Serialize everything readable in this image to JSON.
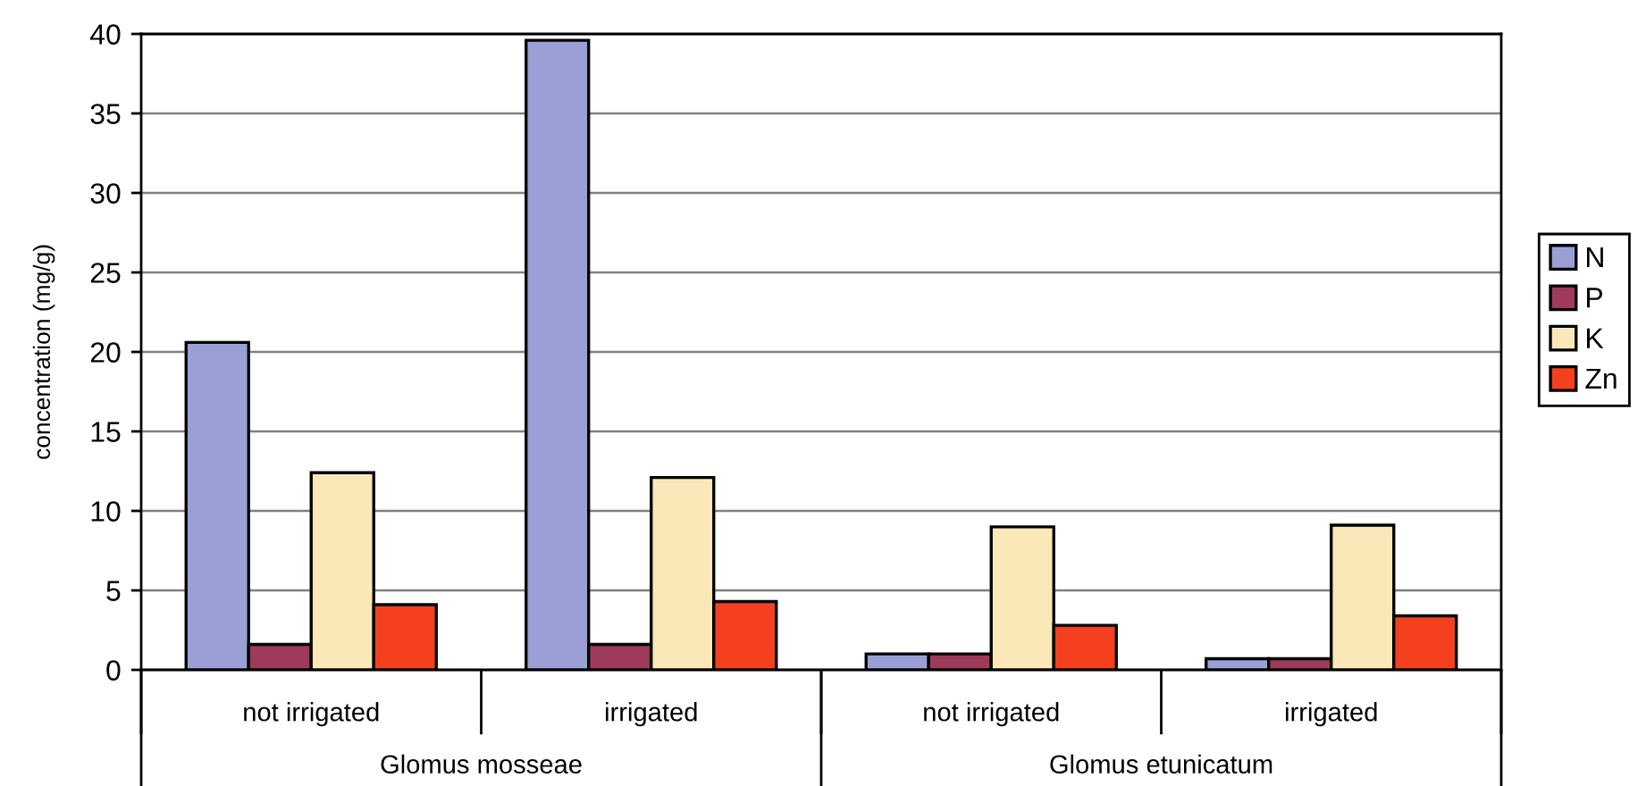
{
  "chart_data": {
    "type": "bar",
    "categories": [
      "not irrigated",
      "irrigated",
      "not irrigated",
      "irrigated"
    ],
    "annotations": [
      "Glomus mosseae",
      "Glomus etunicatum"
    ],
    "ylabel": "concentration (mg/g)",
    "series": [
      {
        "name": "N",
        "color": "#9aa0d6",
        "values": [
          20.6,
          39.6,
          1.0,
          0.7
        ]
      },
      {
        "name": "P",
        "color": "#9e3a5a",
        "values": [
          1.6,
          1.6,
          1.0,
          0.7
        ]
      },
      {
        "name": "K",
        "color": "#fbe8b8",
        "values": [
          12.4,
          12.1,
          9.0,
          9.1
        ]
      },
      {
        "name": "Zn",
        "color": "#f4401f",
        "values": [
          4.1,
          4.3,
          2.8,
          3.4
        ]
      }
    ],
    "ylim": [
      0,
      40
    ],
    "yticks": [
      0,
      5,
      10,
      15,
      20,
      25,
      30,
      35,
      40
    ],
    "grid": "y",
    "legend": "right"
  }
}
